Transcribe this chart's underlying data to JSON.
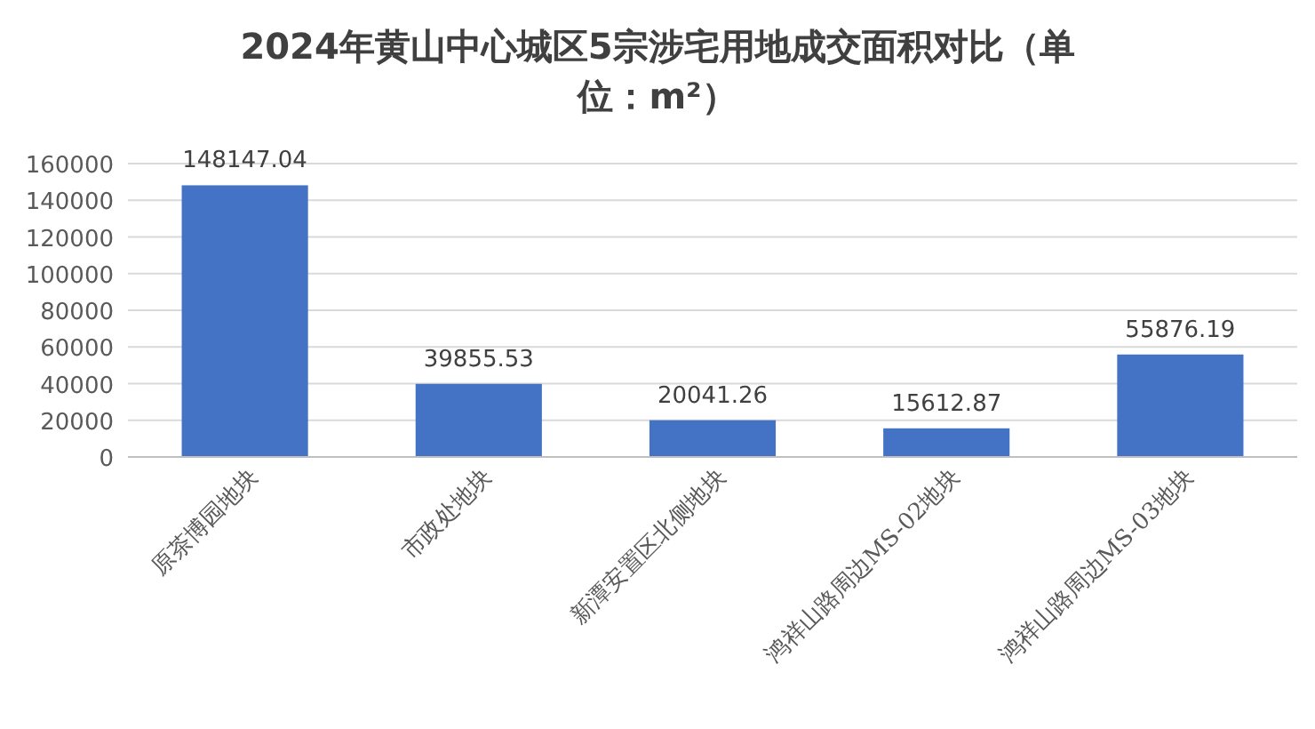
{
  "chart_data": {
    "type": "bar",
    "title": "2024年黄山中心城区5宗涉宅用地成交面积对比（单位：m²）",
    "categories": [
      "原茶博园地块",
      "市政处地块",
      "新潭安置区北侧地块",
      "鸿祥山路周边MS-02地块",
      "鸿祥山路周边MS-03地块"
    ],
    "values": [
      148147.04,
      39855.53,
      20041.26,
      15612.87,
      55876.19
    ],
    "color": "#4472c4",
    "ylim": [
      0,
      160000
    ],
    "yticks": [
      0,
      20000,
      40000,
      60000,
      80000,
      100000,
      120000,
      140000,
      160000
    ],
    "grid": "y",
    "data_labels": true
  }
}
